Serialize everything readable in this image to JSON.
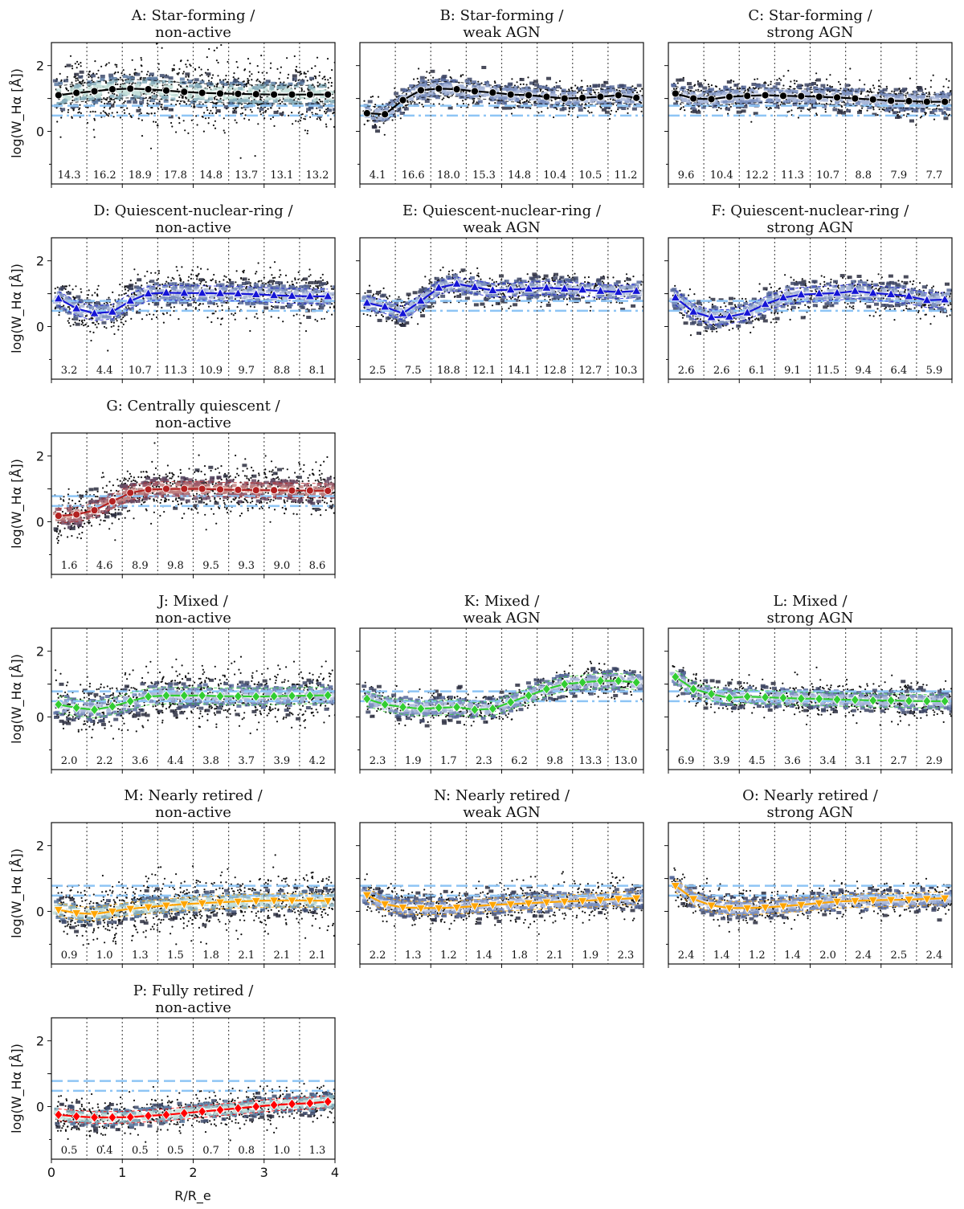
{
  "chart_data": {
    "type": "scatter",
    "description_axes": {
      "xlabel": "R/R_e",
      "ylabel": "log(W_Hα [Å])",
      "xlim": [
        0,
        4
      ],
      "ylim": [
        -1.6,
        2.7
      ],
      "xticks": [
        "0",
        "1",
        "2",
        "3",
        "4"
      ],
      "yticks": [
        "0",
        "2"
      ],
      "bin_edges": [
        0.5,
        1.0,
        1.5,
        2.0,
        2.5,
        3.0,
        3.5
      ]
    },
    "reference_lines": {
      "dashed": 0.78,
      "dashdot": 0.48
    },
    "panels": [
      {
        "id": "A",
        "title1": "A: Star-forming /",
        "title2": "non-active",
        "row": 0,
        "col": 0,
        "color": "#000000",
        "marker": "circle",
        "cmap": "bluegreen",
        "counts": [
          "14.3",
          "16.2",
          "18.9",
          "17.8",
          "14.8",
          "13.7",
          "13.1",
          "13.2"
        ],
        "profile": [
          1.1,
          1.17,
          1.22,
          1.28,
          1.3,
          1.28,
          1.24,
          1.2,
          1.17,
          1.15,
          1.14,
          1.13,
          1.12,
          1.12,
          1.12,
          1.12
        ],
        "spread": 0.28,
        "cloud": 0.75
      },
      {
        "id": "B",
        "title1": "B: Star-forming /",
        "title2": "weak AGN",
        "row": 0,
        "col": 1,
        "color": "#000000",
        "marker": "circle",
        "cmap": "blue",
        "counts": [
          "4.1",
          "16.6",
          "18.0",
          "15.3",
          "14.8",
          "10.4",
          "10.5",
          "11.2"
        ],
        "profile": [
          0.55,
          0.52,
          0.95,
          1.25,
          1.3,
          1.28,
          1.22,
          1.18,
          1.12,
          1.1,
          1.05,
          1.0,
          1.02,
          1.05,
          1.1,
          1.02
        ],
        "spread": 0.22,
        "cloud": 0.35
      },
      {
        "id": "C",
        "title1": "C: Star-forming /",
        "title2": "strong AGN",
        "row": 0,
        "col": 2,
        "color": "#000000",
        "marker": "circle",
        "cmap": "blue",
        "counts": [
          "9.6",
          "10.4",
          "12.2",
          "11.3",
          "10.7",
          "8.8",
          "7.9",
          "7.7"
        ],
        "profile": [
          1.15,
          1.0,
          0.98,
          1.05,
          1.08,
          1.1,
          1.08,
          1.07,
          1.05,
          1.03,
          1.0,
          0.97,
          0.93,
          0.92,
          0.9,
          0.9
        ],
        "spread": 0.22,
        "cloud": 0.4
      },
      {
        "id": "D",
        "title1": "D: Quiescent-nuclear-ring /",
        "title2": "non-active",
        "row": 1,
        "col": 0,
        "color": "#1515d6",
        "marker": "triangle",
        "cmap": "blue",
        "counts": [
          "3.2",
          "4.4",
          "10.7",
          "11.3",
          "10.9",
          "9.7",
          "8.8",
          "8.1"
        ],
        "profile": [
          0.85,
          0.55,
          0.4,
          0.45,
          0.78,
          1.0,
          1.03,
          1.02,
          1.02,
          1.01,
          1.0,
          0.98,
          0.95,
          0.93,
          0.92,
          0.92
        ],
        "spread": 0.22,
        "cloud": 0.55
      },
      {
        "id": "E",
        "title1": "E: Quiescent-nuclear-ring /",
        "title2": "weak AGN",
        "row": 1,
        "col": 1,
        "color": "#1515d6",
        "marker": "triangle",
        "cmap": "blue",
        "counts": [
          "2.5",
          "7.5",
          "18.8",
          "12.1",
          "14.1",
          "12.8",
          "12.7",
          "10.3"
        ],
        "profile": [
          0.72,
          0.6,
          0.4,
          0.78,
          1.18,
          1.3,
          1.2,
          1.1,
          1.12,
          1.15,
          1.18,
          1.15,
          1.12,
          1.08,
          1.05,
          1.08
        ],
        "spread": 0.2,
        "cloud": 0.35
      },
      {
        "id": "F",
        "title1": "F: Quiescent-nuclear-ring /",
        "title2": "strong AGN",
        "row": 1,
        "col": 2,
        "color": "#1515d6",
        "marker": "triangle",
        "cmap": "blue",
        "counts": [
          "2.6",
          "2.6",
          "6.1",
          "9.1",
          "11.5",
          "9.4",
          "6.4",
          "5.9"
        ],
        "profile": [
          0.88,
          0.45,
          0.28,
          0.3,
          0.42,
          0.68,
          0.88,
          0.97,
          1.0,
          1.02,
          1.08,
          1.02,
          0.98,
          0.92,
          0.8,
          0.82
        ],
        "spread": 0.22,
        "cloud": 0.4
      },
      {
        "id": "G",
        "title1": "G: Centrally quiescent /",
        "title2": "non-active",
        "row": 2,
        "col": 0,
        "color": "#b22222",
        "marker": "circle",
        "cmap": "red",
        "counts": [
          "1.6",
          "4.6",
          "8.9",
          "9.8",
          "9.5",
          "9.3",
          "9.0",
          "8.6"
        ],
        "profile": [
          0.18,
          0.22,
          0.35,
          0.62,
          0.88,
          0.98,
          1.0,
          1.0,
          1.0,
          0.98,
          0.97,
          0.96,
          0.96,
          0.95,
          0.95,
          0.94
        ],
        "spread": 0.22,
        "cloud": 0.6
      },
      {
        "id": "J",
        "title1": "J: Mixed /",
        "title2": "non-active",
        "row": 3,
        "col": 0,
        "color": "#32cd32",
        "marker": "diamond",
        "cmap": "blue",
        "counts": [
          "2.0",
          "2.2",
          "3.6",
          "4.4",
          "3.8",
          "3.7",
          "3.9",
          "4.2"
        ],
        "profile": [
          0.38,
          0.28,
          0.22,
          0.32,
          0.48,
          0.62,
          0.65,
          0.65,
          0.65,
          0.63,
          0.63,
          0.62,
          0.63,
          0.64,
          0.65,
          0.66
        ],
        "spread": 0.25,
        "cloud": 0.6
      },
      {
        "id": "K",
        "title1": "K: Mixed /",
        "title2": "weak AGN",
        "row": 3,
        "col": 1,
        "color": "#32cd32",
        "marker": "diamond",
        "cmap": "blue",
        "counts": [
          "2.3",
          "1.9",
          "1.7",
          "2.3",
          "6.2",
          "9.8",
          "13.3",
          "13.0"
        ],
        "profile": [
          0.55,
          0.38,
          0.3,
          0.25,
          0.28,
          0.3,
          0.22,
          0.25,
          0.45,
          0.65,
          0.85,
          1.0,
          1.05,
          1.1,
          1.1,
          1.05
        ],
        "spread": 0.22,
        "cloud": 0.35
      },
      {
        "id": "L",
        "title1": "L: Mixed /",
        "title2": "strong AGN",
        "row": 3,
        "col": 2,
        "color": "#32cd32",
        "marker": "diamond",
        "cmap": "blue",
        "counts": [
          "6.9",
          "3.9",
          "4.5",
          "3.6",
          "3.4",
          "3.1",
          "2.7",
          "2.9"
        ],
        "profile": [
          1.22,
          0.85,
          0.7,
          0.58,
          0.62,
          0.6,
          0.58,
          0.56,
          0.55,
          0.53,
          0.52,
          0.5,
          0.5,
          0.49,
          0.48,
          0.48
        ],
        "spread": 0.2,
        "cloud": 0.4
      },
      {
        "id": "M",
        "title1": "M: Nearly retired /",
        "title2": "non-active",
        "row": 4,
        "col": 0,
        "color": "#ffa500",
        "marker": "tri_down",
        "cmap": "bluegreen",
        "counts": [
          "0.9",
          "1.0",
          "1.3",
          "1.5",
          "1.8",
          "2.1",
          "2.1",
          "2.1"
        ],
        "profile": [
          0.05,
          -0.05,
          -0.08,
          0.0,
          0.08,
          0.13,
          0.18,
          0.22,
          0.25,
          0.28,
          0.3,
          0.32,
          0.33,
          0.33,
          0.33,
          0.32
        ],
        "spread": 0.2,
        "cloud": 0.65
      },
      {
        "id": "N",
        "title1": "N: Nearly retired /",
        "title2": "weak AGN",
        "row": 4,
        "col": 1,
        "color": "#ffa500",
        "marker": "tri_down",
        "cmap": "blue",
        "counts": [
          "2.2",
          "1.3",
          "1.2",
          "1.4",
          "1.8",
          "2.1",
          "1.9",
          "2.3"
        ],
        "profile": [
          0.5,
          0.22,
          0.12,
          0.1,
          0.1,
          0.12,
          0.16,
          0.2,
          0.22,
          0.25,
          0.28,
          0.3,
          0.32,
          0.35,
          0.38,
          0.4
        ],
        "spread": 0.2,
        "cloud": 0.45
      },
      {
        "id": "O",
        "title1": "O: Nearly retired /",
        "title2": "strong AGN",
        "row": 4,
        "col": 2,
        "color": "#ffa500",
        "marker": "tri_down",
        "cmap": "blue",
        "counts": [
          "2.4",
          "1.4",
          "1.2",
          "1.4",
          "2.0",
          "2.4",
          "2.5",
          "2.4"
        ],
        "profile": [
          0.78,
          0.38,
          0.18,
          0.1,
          0.1,
          0.12,
          0.16,
          0.2,
          0.25,
          0.3,
          0.32,
          0.34,
          0.35,
          0.36,
          0.38,
          0.4
        ],
        "spread": 0.2,
        "cloud": 0.4
      },
      {
        "id": "P",
        "title1": "P: Fully retired /",
        "title2": "non-active",
        "row": 5,
        "col": 0,
        "color": "#ff0000",
        "marker": "diamond",
        "cmap": "bluegreen",
        "counts": [
          "0.5",
          "0.4",
          "0.5",
          "0.5",
          "0.7",
          "0.8",
          "1.0",
          "1.3"
        ],
        "profile": [
          -0.25,
          -0.3,
          -0.33,
          -0.33,
          -0.32,
          -0.28,
          -0.25,
          -0.2,
          -0.15,
          -0.1,
          -0.05,
          0.0,
          0.05,
          0.08,
          0.1,
          0.15
        ],
        "spread": 0.18,
        "cloud": 0.45
      }
    ]
  }
}
